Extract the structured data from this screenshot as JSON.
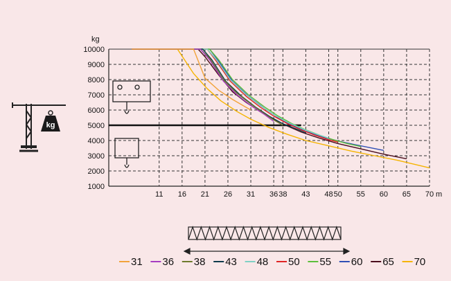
{
  "chart_data": {
    "type": "line",
    "ylabel": "kg",
    "x_unit": "m",
    "ylim": [
      1000,
      10000
    ],
    "xlim": [
      0,
      70
    ],
    "x_ticks": [
      11,
      16,
      21,
      26,
      31,
      36,
      38,
      43,
      48,
      50,
      55,
      60,
      65,
      70
    ],
    "y_ticks": [
      1000,
      2000,
      3000,
      4000,
      5000,
      6000,
      7000,
      8000,
      9000,
      10000
    ],
    "grid": true,
    "legend_position": "bottom",
    "reference_line": {
      "y": 5000
    },
    "series": [
      {
        "name": "31",
        "color": "#f2a33a",
        "points": [
          [
            5,
            10000
          ],
          [
            18.5,
            10000
          ],
          [
            21,
            8100
          ],
          [
            24,
            7300
          ],
          [
            27,
            6700
          ],
          [
            31,
            6000
          ]
        ]
      },
      {
        "name": "36",
        "color": "#a63cc2",
        "points": [
          [
            5,
            10000
          ],
          [
            20,
            10000
          ],
          [
            22,
            9300
          ],
          [
            25,
            7900
          ],
          [
            28,
            7000
          ],
          [
            31,
            6300
          ],
          [
            34,
            5700
          ],
          [
            36,
            5250
          ]
        ]
      },
      {
        "name": "38",
        "color": "#6e7a2c",
        "points": [
          [
            5,
            10000
          ],
          [
            20,
            10000
          ],
          [
            22,
            9400
          ],
          [
            25,
            8000
          ],
          [
            28,
            7100
          ],
          [
            31,
            6400
          ],
          [
            34,
            5750
          ],
          [
            36,
            5350
          ],
          [
            38,
            5000
          ]
        ]
      },
      {
        "name": "43",
        "color": "#0d3a4a",
        "points": [
          [
            5,
            10000
          ],
          [
            20.5,
            10000
          ],
          [
            22.5,
            9300
          ],
          [
            25.5,
            7900
          ],
          [
            29,
            6900
          ],
          [
            32,
            6200
          ],
          [
            35,
            5600
          ],
          [
            38,
            5100
          ],
          [
            41,
            4750
          ],
          [
            43,
            4500
          ]
        ]
      },
      {
        "name": "48",
        "color": "#7fd1c4",
        "points": [
          [
            5,
            10000
          ],
          [
            21.5,
            10000
          ],
          [
            23.5,
            9300
          ],
          [
            26.5,
            8000
          ],
          [
            30,
            7000
          ],
          [
            33,
            6300
          ],
          [
            36,
            5700
          ],
          [
            39,
            5200
          ],
          [
            42,
            4800
          ],
          [
            45,
            4450
          ],
          [
            48,
            4150
          ]
        ]
      },
      {
        "name": "50",
        "color": "#e02424",
        "points": [
          [
            5,
            10000
          ],
          [
            21.5,
            10000
          ],
          [
            23.5,
            9200
          ],
          [
            26.5,
            7900
          ],
          [
            30,
            6900
          ],
          [
            33,
            6200
          ],
          [
            36,
            5600
          ],
          [
            39,
            5100
          ],
          [
            42,
            4700
          ],
          [
            45,
            4350
          ],
          [
            48,
            4050
          ],
          [
            50,
            3900
          ]
        ]
      },
      {
        "name": "55",
        "color": "#5bbf3a",
        "points": [
          [
            5,
            10000
          ],
          [
            22,
            10000
          ],
          [
            24,
            9300
          ],
          [
            27,
            8000
          ],
          [
            30.5,
            7000
          ],
          [
            34,
            6200
          ],
          [
            37,
            5600
          ],
          [
            40,
            5100
          ],
          [
            43,
            4700
          ],
          [
            46,
            4350
          ],
          [
            49,
            4050
          ],
          [
            52,
            3800
          ],
          [
            55,
            3600
          ]
        ]
      },
      {
        "name": "60",
        "color": "#2f4fb5",
        "points": [
          [
            5,
            10000
          ],
          [
            22,
            10000
          ],
          [
            24,
            9200
          ],
          [
            27,
            7900
          ],
          [
            30.5,
            6900
          ],
          [
            34,
            6100
          ],
          [
            37,
            5500
          ],
          [
            40,
            5000
          ],
          [
            43,
            4600
          ],
          [
            47,
            4200
          ],
          [
            51,
            3900
          ],
          [
            55,
            3650
          ],
          [
            60,
            3350
          ]
        ]
      },
      {
        "name": "65",
        "color": "#4a0d1c",
        "points": [
          [
            5,
            10000
          ],
          [
            19.5,
            10000
          ],
          [
            21,
            9500
          ],
          [
            24,
            8300
          ],
          [
            27,
            7200
          ],
          [
            30,
            6500
          ],
          [
            33,
            5900
          ],
          [
            36,
            5400
          ],
          [
            39,
            4950
          ],
          [
            42,
            4550
          ],
          [
            46,
            4150
          ],
          [
            50,
            3800
          ],
          [
            55,
            3450
          ],
          [
            60,
            3100
          ],
          [
            65,
            2800
          ]
        ]
      },
      {
        "name": "70",
        "color": "#f5b400",
        "points": [
          [
            5,
            10000
          ],
          [
            15,
            10000
          ],
          [
            18.5,
            8400
          ],
          [
            21.5,
            7400
          ],
          [
            24.5,
            6600
          ],
          [
            28,
            5900
          ],
          [
            31,
            5400
          ],
          [
            35,
            4850
          ],
          [
            39,
            4400
          ],
          [
            43,
            4000
          ],
          [
            48,
            3650
          ],
          [
            53,
            3300
          ],
          [
            58,
            3000
          ],
          [
            63,
            2700
          ],
          [
            70,
            2200
          ]
        ]
      }
    ]
  }
}
